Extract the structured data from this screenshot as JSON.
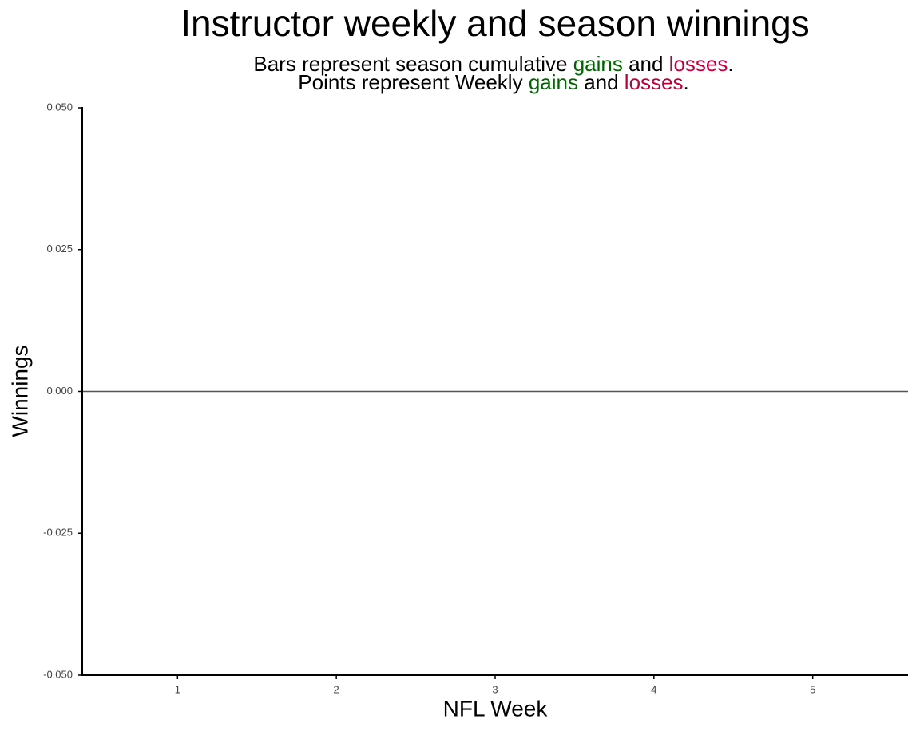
{
  "chart_data": {
    "type": "bar",
    "title": "Instructor weekly and season winnings",
    "subtitle_lines": [
      [
        {
          "text": "Bars represent season cumulative "
        },
        {
          "text": "gains",
          "color": "#006400"
        },
        {
          "text": " and "
        },
        {
          "text": "losses",
          "color": "#c0003c"
        },
        {
          "text": "."
        }
      ],
      [
        {
          "text": "Points represent Weekly "
        },
        {
          "text": "gains",
          "color": "#006400"
        },
        {
          "text": " and "
        },
        {
          "text": "losses",
          "color": "#c0003c"
        },
        {
          "text": "."
        }
      ]
    ],
    "x_label": "NFL Week",
    "y_label": "Winnings",
    "xlim": [
      0.4,
      5.6
    ],
    "xticks": [
      1,
      2,
      3,
      4,
      5
    ],
    "ylim": [
      -0.05,
      0.05
    ],
    "yticks": [
      {
        "value": -0.05,
        "label": "-0.050"
      },
      {
        "value": -0.025,
        "label": "-0.025"
      },
      {
        "value": 0,
        "label": "0.000"
      },
      {
        "value": 0.025,
        "label": "0.025"
      },
      {
        "value": 0.05,
        "label": "0.050"
      }
    ],
    "hline": 0,
    "hline_color": "#555555",
    "grid": false
  }
}
